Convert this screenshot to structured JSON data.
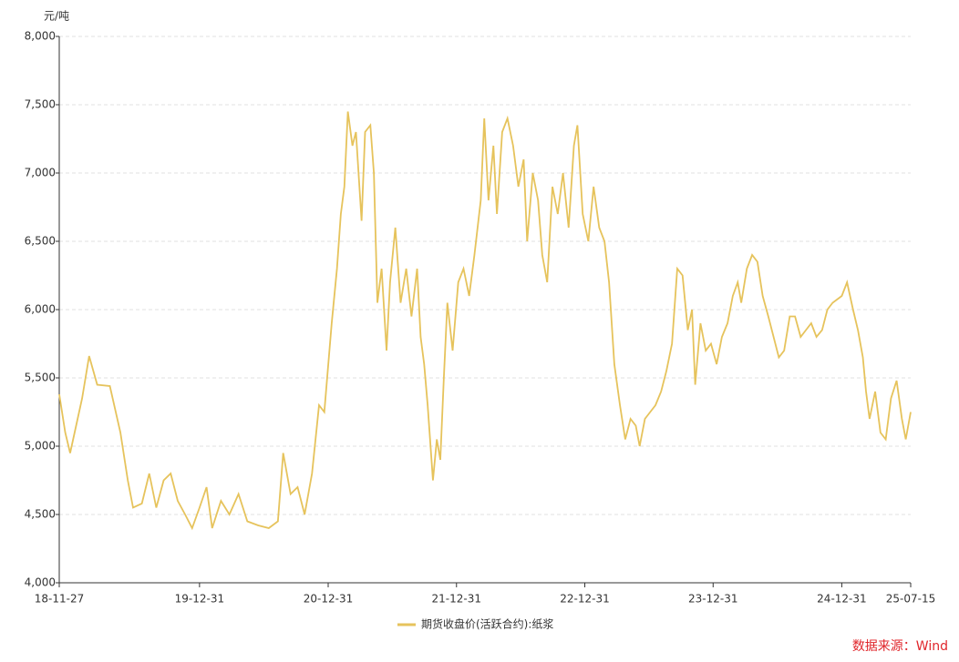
{
  "chart_data": {
    "type": "line",
    "y_unit": "元/吨",
    "source": "数据来源：Wind",
    "xlim": [
      "18-11-27",
      "25-07-15"
    ],
    "xticks": [
      "18-11-27",
      "19-12-31",
      "20-12-31",
      "21-12-31",
      "22-12-31",
      "23-12-31",
      "24-12-31",
      "25-07-15"
    ],
    "ylim": [
      4000,
      8000
    ],
    "yticks": [
      {
        "value": 4000,
        "label": "4,000"
      },
      {
        "value": 4500,
        "label": "4,500"
      },
      {
        "value": 5000,
        "label": "5,000"
      },
      {
        "value": 5500,
        "label": "5,500"
      },
      {
        "value": 6000,
        "label": "6,000"
      },
      {
        "value": 6500,
        "label": "6,500"
      },
      {
        "value": 7000,
        "label": "7,000"
      },
      {
        "value": 7500,
        "label": "7,500"
      },
      {
        "value": 8000,
        "label": "8,000"
      }
    ],
    "grid": true,
    "legend": "bottom",
    "x": [
      "18-11-27",
      "18-12-14",
      "18-12-28",
      "19-01-31",
      "19-02-20",
      "19-03-15",
      "19-04-20",
      "19-05-20",
      "19-06-10",
      "19-06-25",
      "19-07-20",
      "19-08-10",
      "19-08-30",
      "19-09-20",
      "19-10-10",
      "19-10-30",
      "19-11-20",
      "19-12-10",
      "19-12-31",
      "20-01-20",
      "20-02-05",
      "20-03-01",
      "20-03-25",
      "20-04-20",
      "20-05-15",
      "20-06-15",
      "20-07-15",
      "20-08-10",
      "20-08-25",
      "20-09-15",
      "20-10-05",
      "20-10-25",
      "20-11-15",
      "20-12-05",
      "20-12-20",
      "21-01-10",
      "21-01-25",
      "21-02-05",
      "21-02-15",
      "21-02-25",
      "21-03-10",
      "21-03-20",
      "21-04-05",
      "21-04-15",
      "21-04-30",
      "21-05-10",
      "21-05-20",
      "21-06-01",
      "21-06-15",
      "21-06-25",
      "21-07-10",
      "21-07-25",
      "21-08-10",
      "21-08-25",
      "21-09-10",
      "21-09-20",
      "21-09-30",
      "21-10-10",
      "21-10-25",
      "21-11-05",
      "21-11-15",
      "21-11-25",
      "21-12-05",
      "21-12-20",
      "22-01-05",
      "22-01-20",
      "22-02-05",
      "22-02-20",
      "22-03-10",
      "22-03-20",
      "22-04-01",
      "22-04-15",
      "22-04-25",
      "22-05-10",
      "22-05-25",
      "22-06-10",
      "22-06-25",
      "22-07-10",
      "22-07-20",
      "22-08-05",
      "22-08-20",
      "22-09-01",
      "22-09-15",
      "22-09-30",
      "22-10-15",
      "22-10-30",
      "22-11-15",
      "22-11-30",
      "22-12-10",
      "22-12-25",
      "23-01-10",
      "23-01-25",
      "23-02-10",
      "23-02-25",
      "23-03-10",
      "23-03-25",
      "23-04-10",
      "23-04-25",
      "23-05-10",
      "23-05-25",
      "23-06-05",
      "23-06-20",
      "23-07-05",
      "23-07-20",
      "23-08-05",
      "23-08-20",
      "23-09-05",
      "23-09-20",
      "23-10-05",
      "23-10-20",
      "23-11-01",
      "23-11-10",
      "23-11-25",
      "23-12-10",
      "23-12-25",
      "24-01-10",
      "24-01-25",
      "24-02-10",
      "24-02-25",
      "24-03-10",
      "24-03-20",
      "24-04-05",
      "24-04-20",
      "24-05-05",
      "24-05-20",
      "24-06-05",
      "24-06-20",
      "24-07-05",
      "24-07-20",
      "24-08-05",
      "24-08-20",
      "24-09-05",
      "24-09-20",
      "24-10-05",
      "24-10-20",
      "24-11-05",
      "24-11-20",
      "24-12-05",
      "24-12-31",
      "25-01-15",
      "25-02-01",
      "25-02-15",
      "25-03-01",
      "25-03-10",
      "25-03-20",
      "25-04-05",
      "25-04-20",
      "25-05-05",
      "25-05-20",
      "25-06-05",
      "25-06-20",
      "25-07-01",
      "25-07-15"
    ],
    "series": [
      {
        "name": "期货收盘价(活跃合约):纸浆",
        "color": "#e6c35c",
        "values": [
          5380,
          5100,
          4950,
          5350,
          5660,
          5450,
          5440,
          5100,
          4750,
          4550,
          4580,
          4800,
          4550,
          4750,
          4800,
          4600,
          4500,
          4400,
          4550,
          4700,
          4400,
          4600,
          4500,
          4650,
          4450,
          4420,
          4400,
          4450,
          4950,
          4650,
          4700,
          4500,
          4800,
          5300,
          5250,
          5900,
          6300,
          6700,
          6900,
          7450,
          7200,
          7300,
          6650,
          7300,
          7350,
          7000,
          6050,
          6300,
          5700,
          6200,
          6600,
          6050,
          6300,
          5950,
          6300,
          5800,
          5600,
          5300,
          4750,
          5050,
          4900,
          5500,
          6050,
          5700,
          6200,
          6300,
          6100,
          6400,
          6800,
          7400,
          6800,
          7200,
          6700,
          7300,
          7400,
          7200,
          6900,
          7100,
          6500,
          7000,
          6800,
          6400,
          6200,
          6900,
          6700,
          7000,
          6600,
          7200,
          7350,
          6700,
          6500,
          6900,
          6600,
          6500,
          6200,
          5600,
          5300,
          5050,
          5200,
          5150,
          5000,
          5200,
          5250,
          5300,
          5400,
          5550,
          5750,
          6300,
          6250,
          5850,
          6000,
          5450,
          5900,
          5700,
          5750,
          5600,
          5800,
          5900,
          6100,
          6200,
          6050,
          6300,
          6400,
          6350,
          6100,
          5950,
          5800,
          5650,
          5700,
          5950,
          5950,
          5800,
          5850,
          5900,
          5800,
          5850,
          6000,
          6050,
          6100,
          6200,
          6000,
          5850,
          5650,
          5400,
          5200,
          5400,
          5100,
          5050,
          5350,
          5480,
          5200,
          5050,
          5250
        ]
      }
    ]
  }
}
